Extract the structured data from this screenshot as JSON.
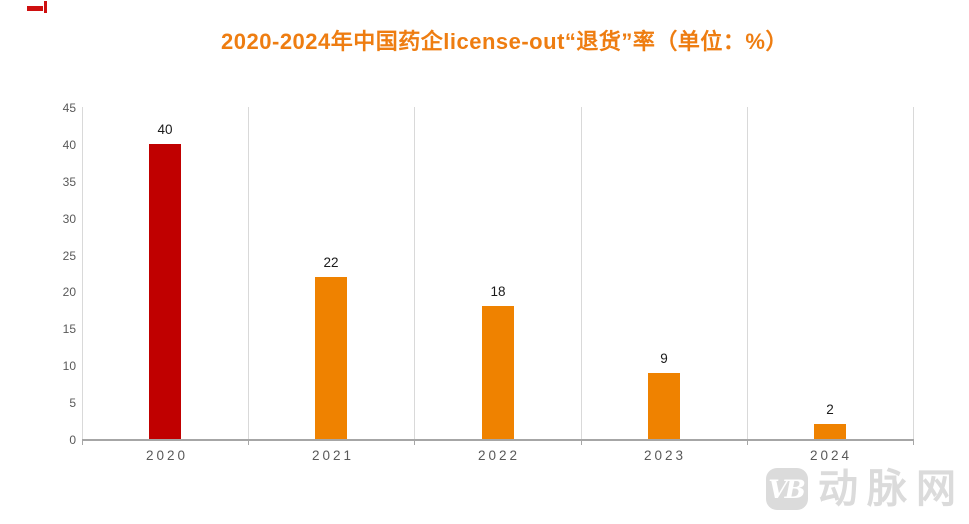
{
  "page": {
    "background": "#FFFFFF"
  },
  "decoration": {
    "corner_mark_color": "#CE1010"
  },
  "title": {
    "text": "2020-2024年中国药企license-out“退货”率（单位：%）",
    "color": "#EE7D11"
  },
  "chart_data": {
    "type": "bar",
    "title": "2020-2024年中国药企license-out“退货”率（单位：%）",
    "categories": [
      "2020",
      "2021",
      "2022",
      "2023",
      "2024"
    ],
    "values": [
      40,
      22,
      18,
      9,
      2
    ],
    "unit": "%",
    "bar_colors": [
      "#C00000",
      "#EF8200",
      "#EF8200",
      "#EF8200",
      "#EF8200"
    ],
    "data_labels": [
      "40",
      "22",
      "18",
      "9",
      "2"
    ],
    "data_label_color": "#1A1A1A",
    "xlabel": "",
    "ylabel": "",
    "ylim": [
      0,
      45
    ],
    "yticks": [
      0,
      5,
      10,
      15,
      20,
      25,
      30,
      35,
      40,
      45
    ],
    "axis_label_color": "#595959",
    "gridline_color": "#D9D9D9",
    "axis_line_color": "#A6A6A6",
    "grid": "vertical-category-separators-only",
    "legend": "none"
  },
  "watermark": {
    "logo_text": "VB",
    "site_name": "动脉网",
    "color": "#DBDBDB"
  }
}
